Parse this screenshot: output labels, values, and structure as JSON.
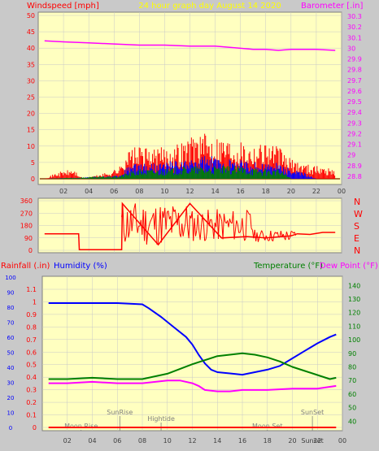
{
  "header": {
    "left_label": "Windspeed [mph]",
    "center_label": "24 hour graph day   August 14 2020",
    "right_label": "Barometer [.in]"
  },
  "colors": {
    "background": "#c9c9c9",
    "plot_bg": "#ffffc0",
    "grid": "#c8c8c8",
    "wind_gust": "#ff0000",
    "wind_avg": "#0000ff",
    "wind_low": "#008000",
    "barometer": "#ff00ff",
    "direction": "#ff0000",
    "humidity": "#0000ff",
    "temperature": "#008000",
    "dew_point": "#ff00ff",
    "rainfall": "#ff0000",
    "annotations": "#808080"
  },
  "chart_data": [
    {
      "type": "line",
      "panel": "wind_barometer",
      "xlabel": "",
      "x_ticks": [
        "02",
        "04",
        "06",
        "08",
        "10",
        "12",
        "14",
        "16",
        "18",
        "20",
        "22",
        "00"
      ],
      "ylabel": "Windspeed [mph]",
      "ylim": [
        0,
        50
      ],
      "y_ticks": [
        "0",
        "5",
        "10",
        "15",
        "20",
        "25",
        "30",
        "35",
        "40",
        "45",
        "50"
      ],
      "y2label": "Barometer [.in]",
      "y2lim": [
        28.8,
        30.3
      ],
      "y2_ticks": [
        "28.8",
        "28.9",
        "29",
        "29.1",
        "29.2",
        "29.3",
        "29.4",
        "29.5",
        "29.6",
        "29.7",
        "29.8",
        "29.9",
        "30",
        "30.1",
        "30.2",
        "30.3"
      ],
      "grid": true,
      "series": [
        {
          "key": "gust",
          "axis": "left",
          "style": "spikes",
          "x": [
            0.5,
            1.5,
            2.8,
            3.5,
            5.5,
            6.5,
            7,
            8,
            9,
            10,
            11,
            12,
            12.5,
            13,
            14,
            15,
            16,
            17,
            18,
            19,
            19.5,
            20,
            21,
            22,
            23.5
          ],
          "values": [
            0,
            2,
            3,
            0,
            2,
            4,
            9,
            10,
            9,
            10,
            11,
            13,
            15,
            14,
            14,
            13,
            12,
            11,
            12,
            10,
            8,
            6,
            5,
            4,
            3
          ]
        },
        {
          "key": "average",
          "axis": "left",
          "style": "spikes",
          "x": [
            0.5,
            6.5,
            7,
            8,
            9,
            10,
            11,
            12,
            13,
            14,
            15,
            16,
            17,
            18,
            19,
            19.5,
            20,
            21,
            22,
            23.5
          ],
          "values": [
            0,
            1,
            4,
            5,
            5,
            5,
            6,
            6,
            7,
            7,
            6,
            6,
            5,
            5,
            5,
            4,
            3,
            2,
            0,
            0
          ]
        },
        {
          "key": "low",
          "axis": "left",
          "style": "spikes",
          "x": [
            0.5,
            6.5,
            7,
            8,
            10,
            12,
            14,
            16,
            18,
            19,
            19.5,
            20,
            23.5
          ],
          "values": [
            0,
            1,
            2,
            3,
            3,
            4,
            4,
            4,
            3,
            3,
            2,
            0,
            0
          ]
        },
        {
          "key": "barometer",
          "axis": "right",
          "style": "line",
          "x": [
            0.5,
            2,
            4,
            6,
            8,
            10,
            12,
            14,
            16,
            17,
            18,
            19,
            20,
            21,
            22,
            23.5
          ],
          "values": [
            30.07,
            30.06,
            30.05,
            30.04,
            30.03,
            30.03,
            30.02,
            30.02,
            30.0,
            29.99,
            29.99,
            29.98,
            29.99,
            29.99,
            29.99,
            29.98
          ]
        }
      ]
    },
    {
      "type": "line",
      "panel": "wind_direction",
      "xlabel": "",
      "ylabel": "",
      "ylim": [
        0,
        360
      ],
      "y_ticks": [
        "0",
        "90",
        "180",
        "270",
        "360"
      ],
      "y2_ticks": [
        "N",
        "W",
        "S",
        "E",
        "N"
      ],
      "grid": true,
      "series": [
        {
          "key": "direction",
          "x": [
            0.5,
            3.2,
            3.25,
            5.5,
            6.6,
            6.65,
            9.5,
            12.0,
            14.5,
            16.5,
            18.0,
            20.0,
            20.5,
            21.5,
            22.5,
            23.5
          ],
          "values": [
            120,
            120,
            5,
            5,
            5,
            340,
            40,
            340,
            90,
            100,
            90,
            105,
            120,
            115,
            130,
            130
          ]
        }
      ]
    },
    {
      "type": "line",
      "panel": "humidity_temperature",
      "xlabel": "",
      "x_ticks": [
        "02",
        "04",
        "06",
        "08",
        "10",
        "12",
        "14",
        "16",
        "18",
        "20",
        "22",
        "00"
      ],
      "ylabel_left_a": "Rainfall (.in)",
      "ylabel_left_b": "Humidity (%)",
      "ylim": [
        0,
        1.1
      ],
      "y_ticks": [
        "0",
        "0.1",
        "0.2",
        "0.3",
        "0.4",
        "0.5",
        "0.6",
        "0.7",
        "0.8",
        "0.9",
        "1",
        "1.1"
      ],
      "humidity_ticks": [
        "0",
        "10",
        "20",
        "30",
        "40",
        "50",
        "60",
        "70",
        "80",
        "90",
        "100"
      ],
      "ylabel_right_a": "Temperature (°F)",
      "ylabel_right_b": "Dew Point (°F)",
      "y2lim": [
        30,
        145
      ],
      "y2_ticks": [
        "40",
        "50",
        "60",
        "70",
        "80",
        "90",
        "100",
        "110",
        "120",
        "130",
        "140"
      ],
      "grid": true,
      "series": [
        {
          "key": "humidity",
          "axis": "left",
          "x": [
            0.5,
            2,
            4,
            6,
            8,
            8.5,
            9.5,
            10.5,
            11.5,
            12,
            12.5,
            13,
            13.5,
            14,
            15,
            16,
            17,
            18,
            19,
            20,
            21,
            22,
            23,
            23.5
          ],
          "values": [
            0.99,
            0.99,
            0.99,
            0.99,
            0.98,
            0.95,
            0.88,
            0.8,
            0.72,
            0.66,
            0.58,
            0.51,
            0.46,
            0.44,
            0.43,
            0.42,
            0.44,
            0.46,
            0.49,
            0.55,
            0.61,
            0.67,
            0.72,
            0.74
          ]
        },
        {
          "key": "temperature",
          "axis": "right",
          "x": [
            0.5,
            2,
            4,
            6,
            8,
            10,
            12,
            14,
            16,
            17,
            18,
            19,
            20,
            21,
            22,
            23,
            23.5
          ],
          "values": [
            71,
            71,
            72,
            71,
            71,
            75,
            82,
            88,
            90,
            89,
            87,
            84,
            80,
            77,
            74,
            71,
            72
          ]
        },
        {
          "key": "dew_point",
          "axis": "right",
          "x": [
            0.5,
            2,
            4,
            6,
            8,
            10,
            11,
            12,
            12.5,
            13,
            14,
            15,
            16,
            18,
            20,
            22,
            23.5
          ],
          "values": [
            68,
            68,
            69,
            68,
            68,
            70,
            70,
            68,
            66,
            63,
            62,
            62,
            63,
            63,
            64,
            64,
            66
          ]
        },
        {
          "key": "rainfall",
          "axis": "left",
          "x": [
            0.5,
            23.5
          ],
          "values": [
            0.0,
            0.0
          ]
        }
      ],
      "annotations": [
        {
          "label": "Moon Rise",
          "hour": 3.1,
          "row": "low"
        },
        {
          "label": "SunRise",
          "hour": 6.2,
          "row": "high"
        },
        {
          "label": "Hightide",
          "hour": 9.5,
          "row": "mid"
        },
        {
          "label": "Moon Set",
          "hour": 18.0,
          "row": "low"
        },
        {
          "label": "SunSet",
          "hour": 21.6,
          "row": "high"
        },
        {
          "label": "Sunset",
          "hour": 21.6,
          "row": "bottom"
        }
      ]
    }
  ]
}
